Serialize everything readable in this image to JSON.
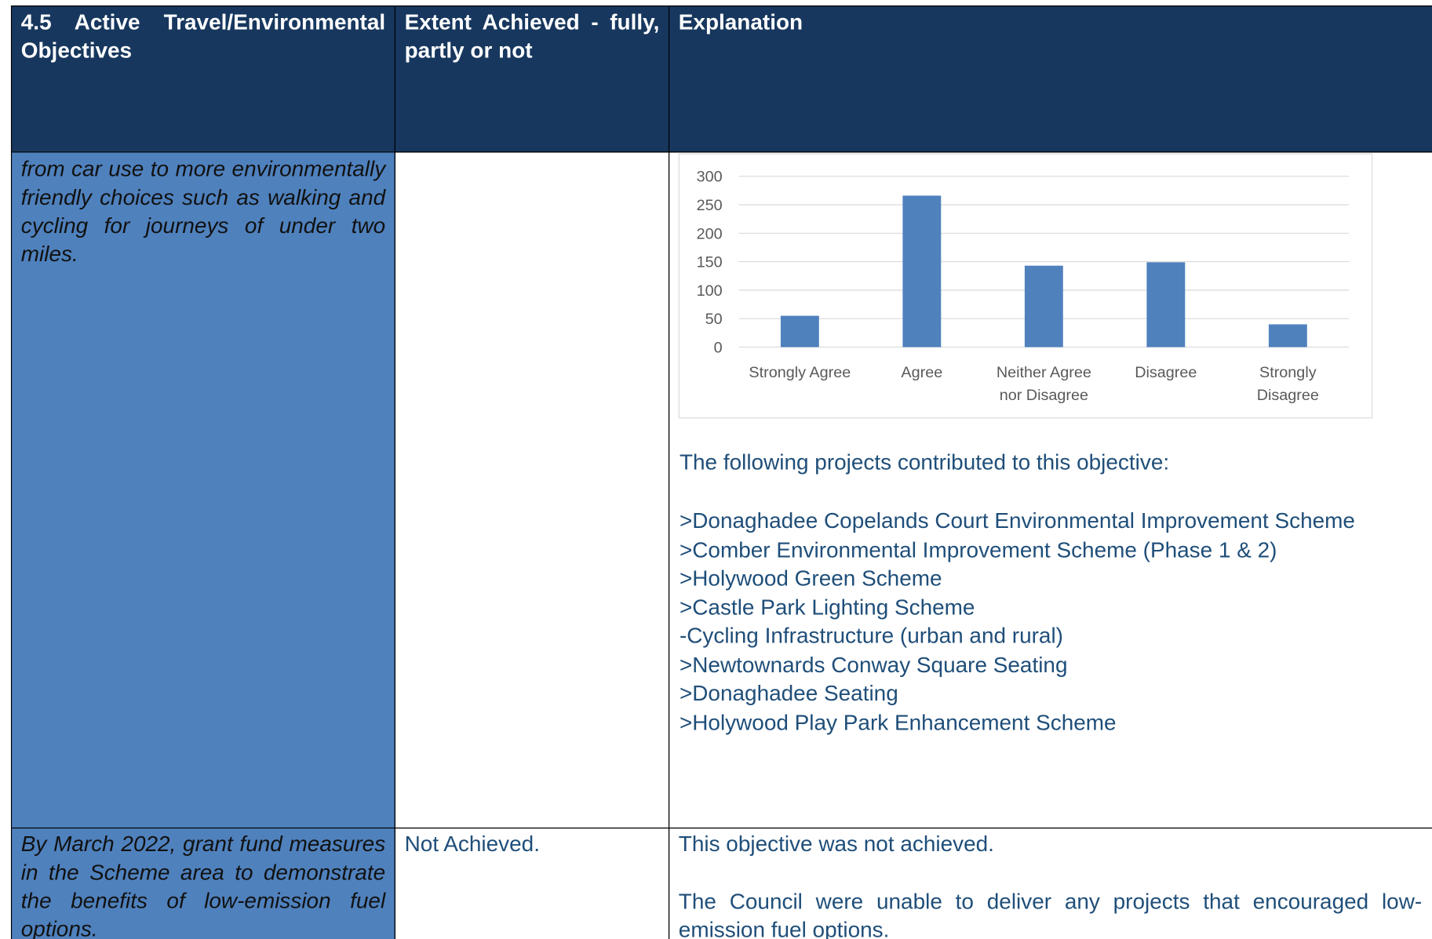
{
  "header": {
    "cells": [
      "4.5 Active Travel/Environmental Objectives",
      "Extent Achieved - fully, partly or not",
      "Explanation"
    ]
  },
  "rows": [
    {
      "objective": "from car use to more environmentally friendly choices such as walking and cycling for journeys of under two miles.",
      "extent": null,
      "intro": "The following projects contributed to this objective:",
      "projects": [
        ">Donaghadee Copelands Court Environmental Improvement Scheme",
        ">Comber Environmental Improvement Scheme (Phase 1 & 2)",
        ">Holywood Green Scheme",
        ">Castle Park Lighting Scheme",
        "-Cycling Infrastructure (urban and rural)",
        ">Newtownards Conway Square Seating",
        ">Donaghadee Seating",
        ">Holywood Play Park Enhancement Scheme"
      ]
    },
    {
      "objective": "By March 2022, grant fund measures in the Scheme area to demonstrate the benefits of low-emission fuel options.",
      "extent": "Not Achieved.",
      "explanation": [
        "This objective was not achieved.",
        "The Council were unable to deliver any projects that encouraged low-emission fuel options."
      ]
    }
  ],
  "chart_data": {
    "type": "bar",
    "categories": [
      "Strongly Agree",
      "Agree",
      "Neither Agree nor Disagree",
      "Disagree",
      "Strongly Disagree"
    ],
    "values": [
      55,
      266,
      143,
      149,
      40
    ],
    "color": "#4f81bd",
    "ylim": [
      0,
      300
    ],
    "yticks": [
      0,
      50,
      100,
      150,
      200,
      250,
      300
    ],
    "grid": true
  }
}
